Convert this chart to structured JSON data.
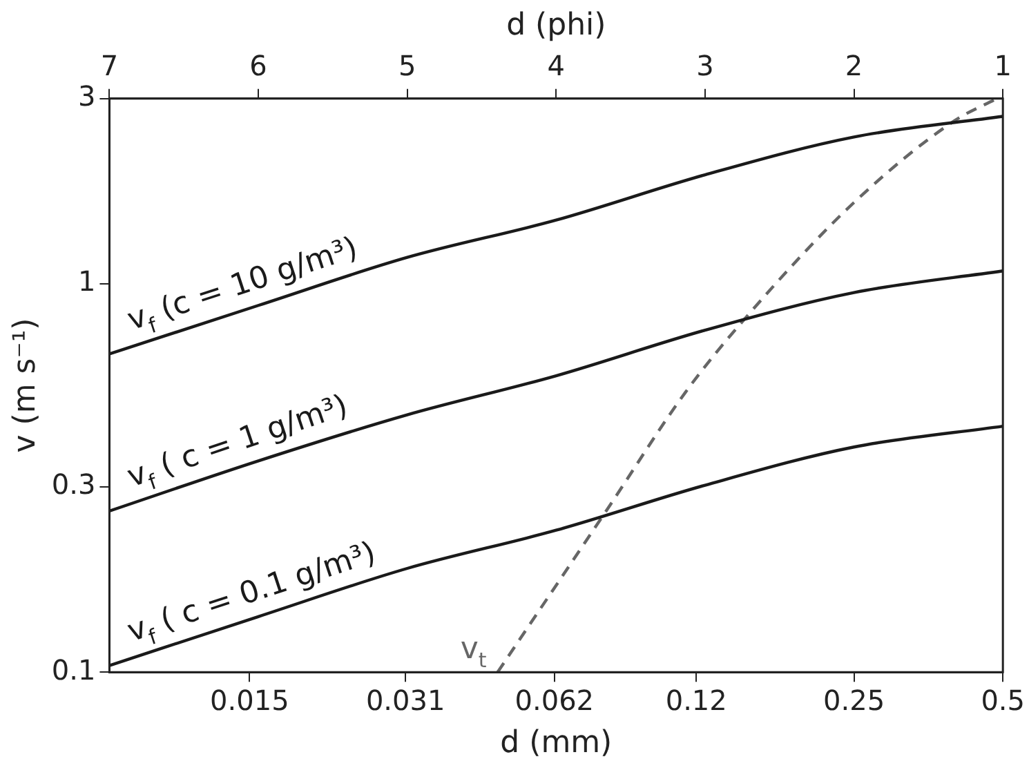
{
  "chart_data": {
    "type": "line",
    "xlabel": "d (mm)",
    "ylabel": "v (m s⁻¹)",
    "x2label": "d (phi)",
    "log": "xy",
    "grid": false,
    "legend": false,
    "marker": "none",
    "xlim": [
      0.0078125,
      0.5
    ],
    "xticks": [
      0.015,
      0.031,
      0.062,
      0.12,
      0.25,
      0.5
    ],
    "x2lim": [
      7,
      1
    ],
    "x2ticks": [
      7,
      6,
      5,
      4,
      3,
      2,
      1
    ],
    "ylim": [
      0.1,
      3
    ],
    "yticks": [
      0.1,
      0.3,
      1,
      3
    ],
    "series": [
      {
        "name": "v$_{f}$ (c = 10 g/m³)",
        "color": "#1a1a1a",
        "line_style": "solid",
        "x": [
          0.0078125,
          0.015625,
          0.03125,
          0.0625,
          0.125,
          0.25,
          0.5
        ],
        "values": [
          0.66,
          0.88,
          1.17,
          1.46,
          1.91,
          2.39,
          2.7
        ]
      },
      {
        "name": "v$_{f}$ ( c = 1 g/m³)",
        "color": "#1a1a1a",
        "line_style": "solid",
        "x": [
          0.0078125,
          0.015625,
          0.03125,
          0.0625,
          0.125,
          0.25,
          0.5
        ],
        "values": [
          0.26,
          0.35,
          0.46,
          0.58,
          0.76,
          0.95,
          1.08
        ]
      },
      {
        "name": "v$_{f}$ ( c = 0.1 g/m³)",
        "color": "#1a1a1a",
        "line_style": "solid",
        "x": [
          0.0078125,
          0.015625,
          0.03125,
          0.0625,
          0.125,
          0.25,
          0.5
        ],
        "values": [
          0.104,
          0.139,
          0.185,
          0.232,
          0.303,
          0.38,
          0.43
        ]
      },
      {
        "name": "v$_{t}$",
        "color": "#666666",
        "line_style": "dashed",
        "x": [
          0.0476,
          0.0795,
          0.114,
          0.151,
          0.25,
          0.399,
          0.486
        ],
        "values": [
          0.1,
          0.264,
          0.525,
          0.818,
          1.62,
          2.63,
          3
        ]
      }
    ]
  }
}
